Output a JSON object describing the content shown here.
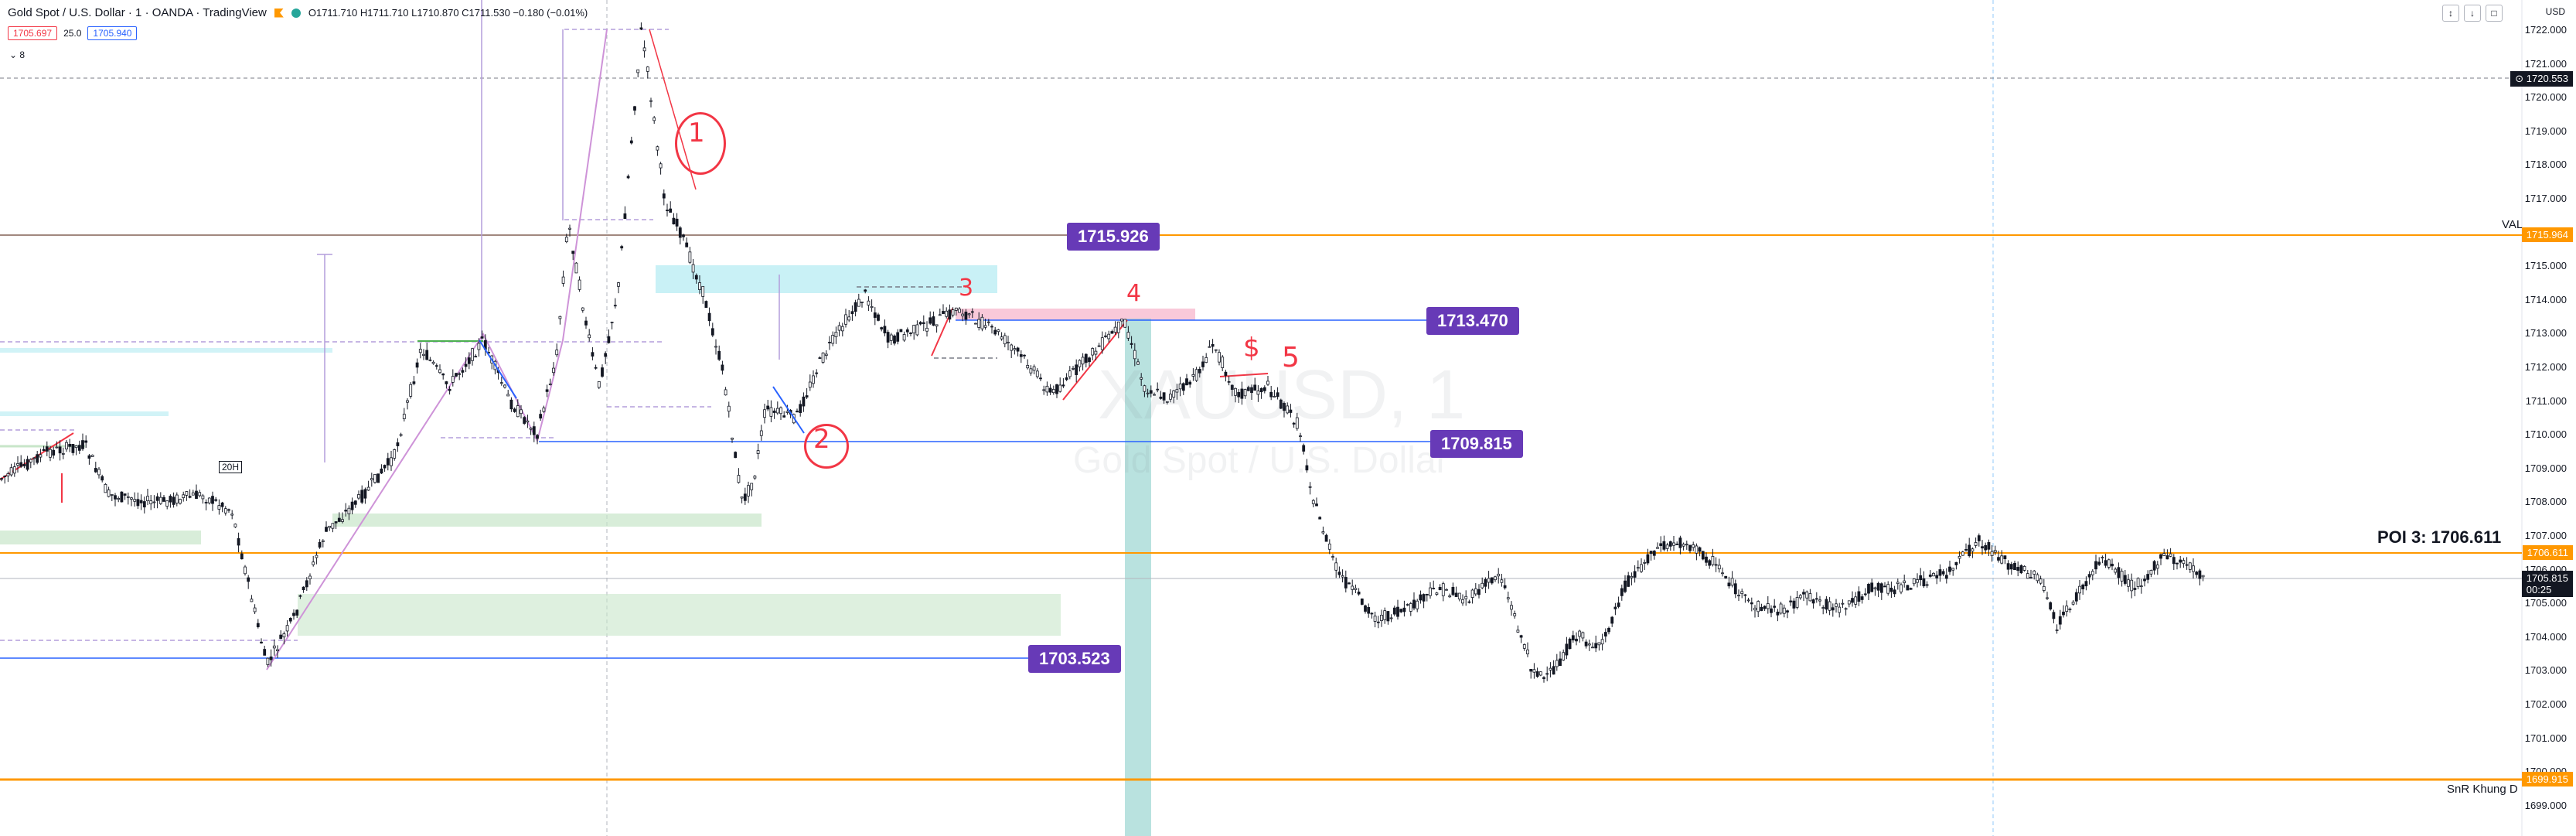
{
  "header": {
    "title": "Gold Spot / U.S. Dollar · 1 · OANDA · TradingView",
    "ohlc": "O1711.710  H1711.710  L1710.870  C1711.530  −0.180 (−0.01%)",
    "sell_price": "1705.697",
    "spread": "25.0",
    "buy_price": "1705.940",
    "indicator_toggle": "8"
  },
  "toolbar": {
    "btn1": "↕",
    "btn2": "↓",
    "btn3": "□"
  },
  "currency": "USD",
  "watermark": {
    "symbol": "XAUUSD, 1",
    "desc": "Gold Spot / U.S. Dollar"
  },
  "price_axis": {
    "ticks": [
      "1722.000",
      "1721.000",
      "1720.000",
      "1719.000",
      "1718.000",
      "1717.000",
      "1716.000",
      "1715.000",
      "1714.000",
      "1713.000",
      "1712.000",
      "1711.000",
      "1710.000",
      "1709.000",
      "1708.000",
      "1707.000",
      "1706.000",
      "1705.000",
      "1704.000",
      "1703.000",
      "1702.000",
      "1701.000",
      "1700.000",
      "1699.000"
    ],
    "tag_top": "1720.553",
    "tag_val": "1715.964",
    "tag_poi": "1706.611",
    "tag_current": "1705.815",
    "tag_countdown": "00:25",
    "tag_snr": "1699.915"
  },
  "labels": {
    "l1": "1715.926",
    "l2": "1713.470",
    "l3": "1709.815",
    "l4": "1703.523"
  },
  "texts": {
    "val": "VAL",
    "poi": "POI 3: 1706.611",
    "snr": "SnR Khung D",
    "small_tag": "20H"
  },
  "annotations": [
    "1",
    "2",
    "3",
    "4",
    "5",
    "$"
  ],
  "colors": {
    "up": "#131722",
    "label_bg": "#673ab7",
    "orange_line": "#ff9800",
    "blue_line": "#2962ff",
    "red_ink": "#f23645",
    "green_zone": "#c8e6c9",
    "cyan_zone": "#b2ebf2",
    "pink_zone": "#f8bbd0",
    "teal_bar": "#80cbc4"
  }
}
